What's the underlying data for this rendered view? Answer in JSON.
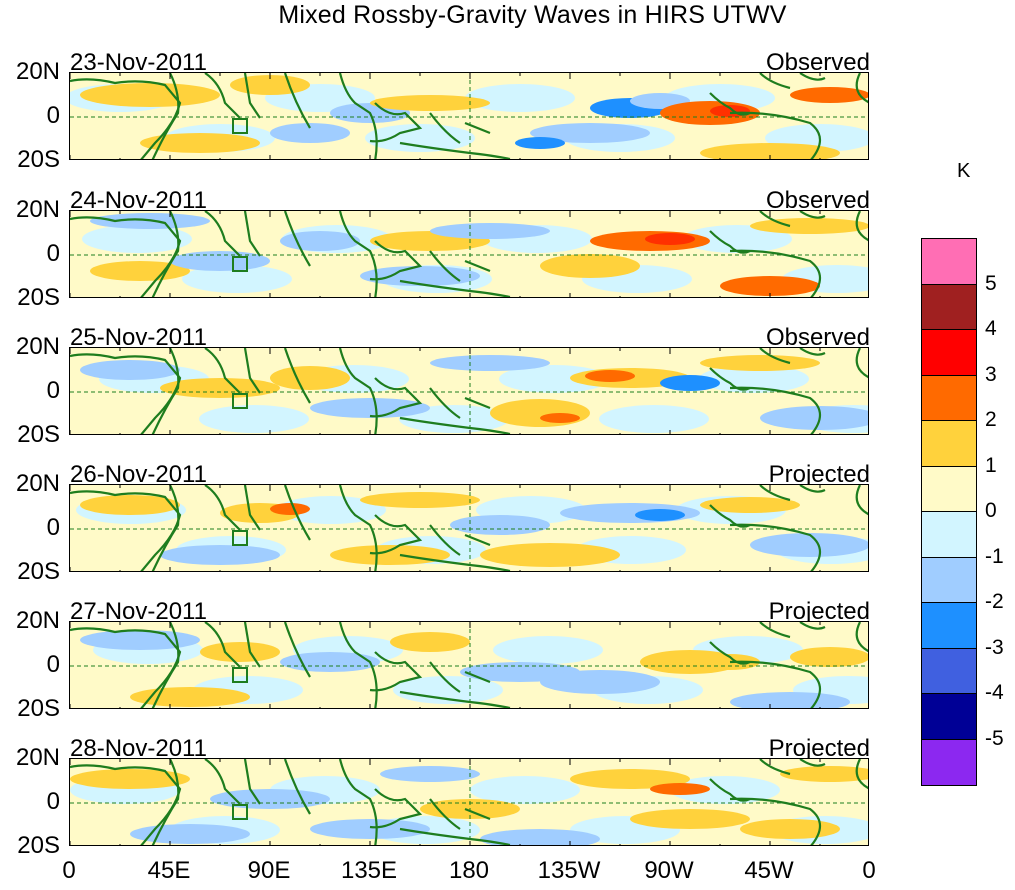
{
  "title": "Mixed Rossby-Gravity Waves in HIRS UTWV",
  "units": "K",
  "latitude_labels": [
    "20N",
    "0",
    "20S"
  ],
  "longitude_labels": [
    "0",
    "45E",
    "90E",
    "135E",
    "180",
    "135W",
    "90W",
    "45W",
    "0"
  ],
  "panels": [
    {
      "date": "23-Nov-2011",
      "status": "Observed"
    },
    {
      "date": "24-Nov-2011",
      "status": "Observed"
    },
    {
      "date": "25-Nov-2011",
      "status": "Observed"
    },
    {
      "date": "26-Nov-2011",
      "status": "Projected"
    },
    {
      "date": "27-Nov-2011",
      "status": "Projected"
    },
    {
      "date": "28-Nov-2011",
      "status": "Projected"
    }
  ],
  "colorbar": {
    "labels": [
      "5",
      "4",
      "3",
      "2",
      "1",
      "0",
      "-1",
      "-2",
      "-3",
      "-4",
      "-5"
    ],
    "colors": [
      "#ff6eb4",
      "#a02020",
      "#ff0000",
      "#ff6a00",
      "#ffd23c",
      "#fffac8",
      "#d2f5ff",
      "#a0cdff",
      "#1e90ff",
      "#4060e0",
      "#000096",
      "#8c28f0"
    ]
  },
  "map_colors": {
    "land": "#1e7d1e",
    "yellow_light": "#fffac8",
    "yellow": "#ffd23c",
    "orange": "#ff6a00",
    "red": "#ff3000",
    "blue_light": "#d2f5ff",
    "blue": "#a0cdff",
    "blue_dark": "#1e90ff"
  }
}
